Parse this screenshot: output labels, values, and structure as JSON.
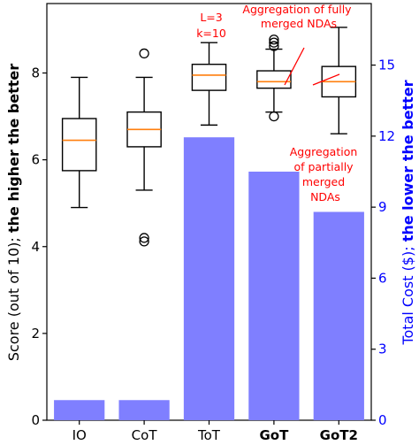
{
  "chart_data": {
    "type": "box+bar",
    "categories": [
      "IO",
      "CoT",
      "ToT",
      "GoT",
      "GoT2"
    ],
    "bold_categories": [
      "GoT",
      "GoT2"
    ],
    "left_axis": {
      "label_parts": [
        "Score (out of 10); ",
        "the higher the better"
      ],
      "ylim": [
        0,
        9.6
      ],
      "ticks": [
        0,
        2,
        4,
        6,
        8
      ],
      "color": "#000000"
    },
    "right_axis": {
      "label_parts": [
        "Total Cost ($); ",
        "the lower the better"
      ],
      "ylim": [
        0,
        17.6
      ],
      "ticks": [
        0,
        3,
        6,
        9,
        12,
        15
      ],
      "color": "#0000ff"
    },
    "bars": {
      "color": "#7f7fff",
      "values": [
        0.85,
        0.85,
        11.95,
        10.5,
        8.8
      ]
    },
    "boxes": [
      {
        "category": "IO",
        "whisker_low": 4.9,
        "q1": 5.75,
        "median": 6.45,
        "q3": 6.95,
        "whisker_high": 7.9,
        "fliers": []
      },
      {
        "category": "CoT",
        "whisker_low": 5.3,
        "q1": 6.3,
        "median": 6.7,
        "q3": 7.1,
        "whisker_high": 7.9,
        "fliers": [
          8.45,
          4.2,
          4.12
        ]
      },
      {
        "category": "ToT",
        "whisker_low": 6.8,
        "q1": 7.6,
        "median": 7.95,
        "q3": 8.2,
        "whisker_high": 8.7,
        "fliers": []
      },
      {
        "category": "GoT",
        "whisker_low": 7.1,
        "q1": 7.65,
        "median": 7.8,
        "q3": 8.05,
        "whisker_high": 8.55,
        "fliers": [
          8.62,
          8.7,
          8.77,
          7.0
        ]
      },
      {
        "category": "GoT2",
        "whisker_low": 6.6,
        "q1": 7.45,
        "median": 7.8,
        "q3": 8.15,
        "whisker_high": 9.05,
        "fliers": []
      }
    ],
    "box_colors": {
      "edge": "#000000",
      "median": "#ff7f0e"
    },
    "annotations": [
      {
        "lines": [
          "L=3",
          "k=10"
        ]
      },
      {
        "lines": [
          "Aggregation of fully",
          "merged NDAs"
        ]
      },
      {
        "lines": [
          "Aggregation",
          "of partially",
          "merged",
          "NDAs"
        ]
      }
    ],
    "annotation_color": "#ff0000"
  }
}
